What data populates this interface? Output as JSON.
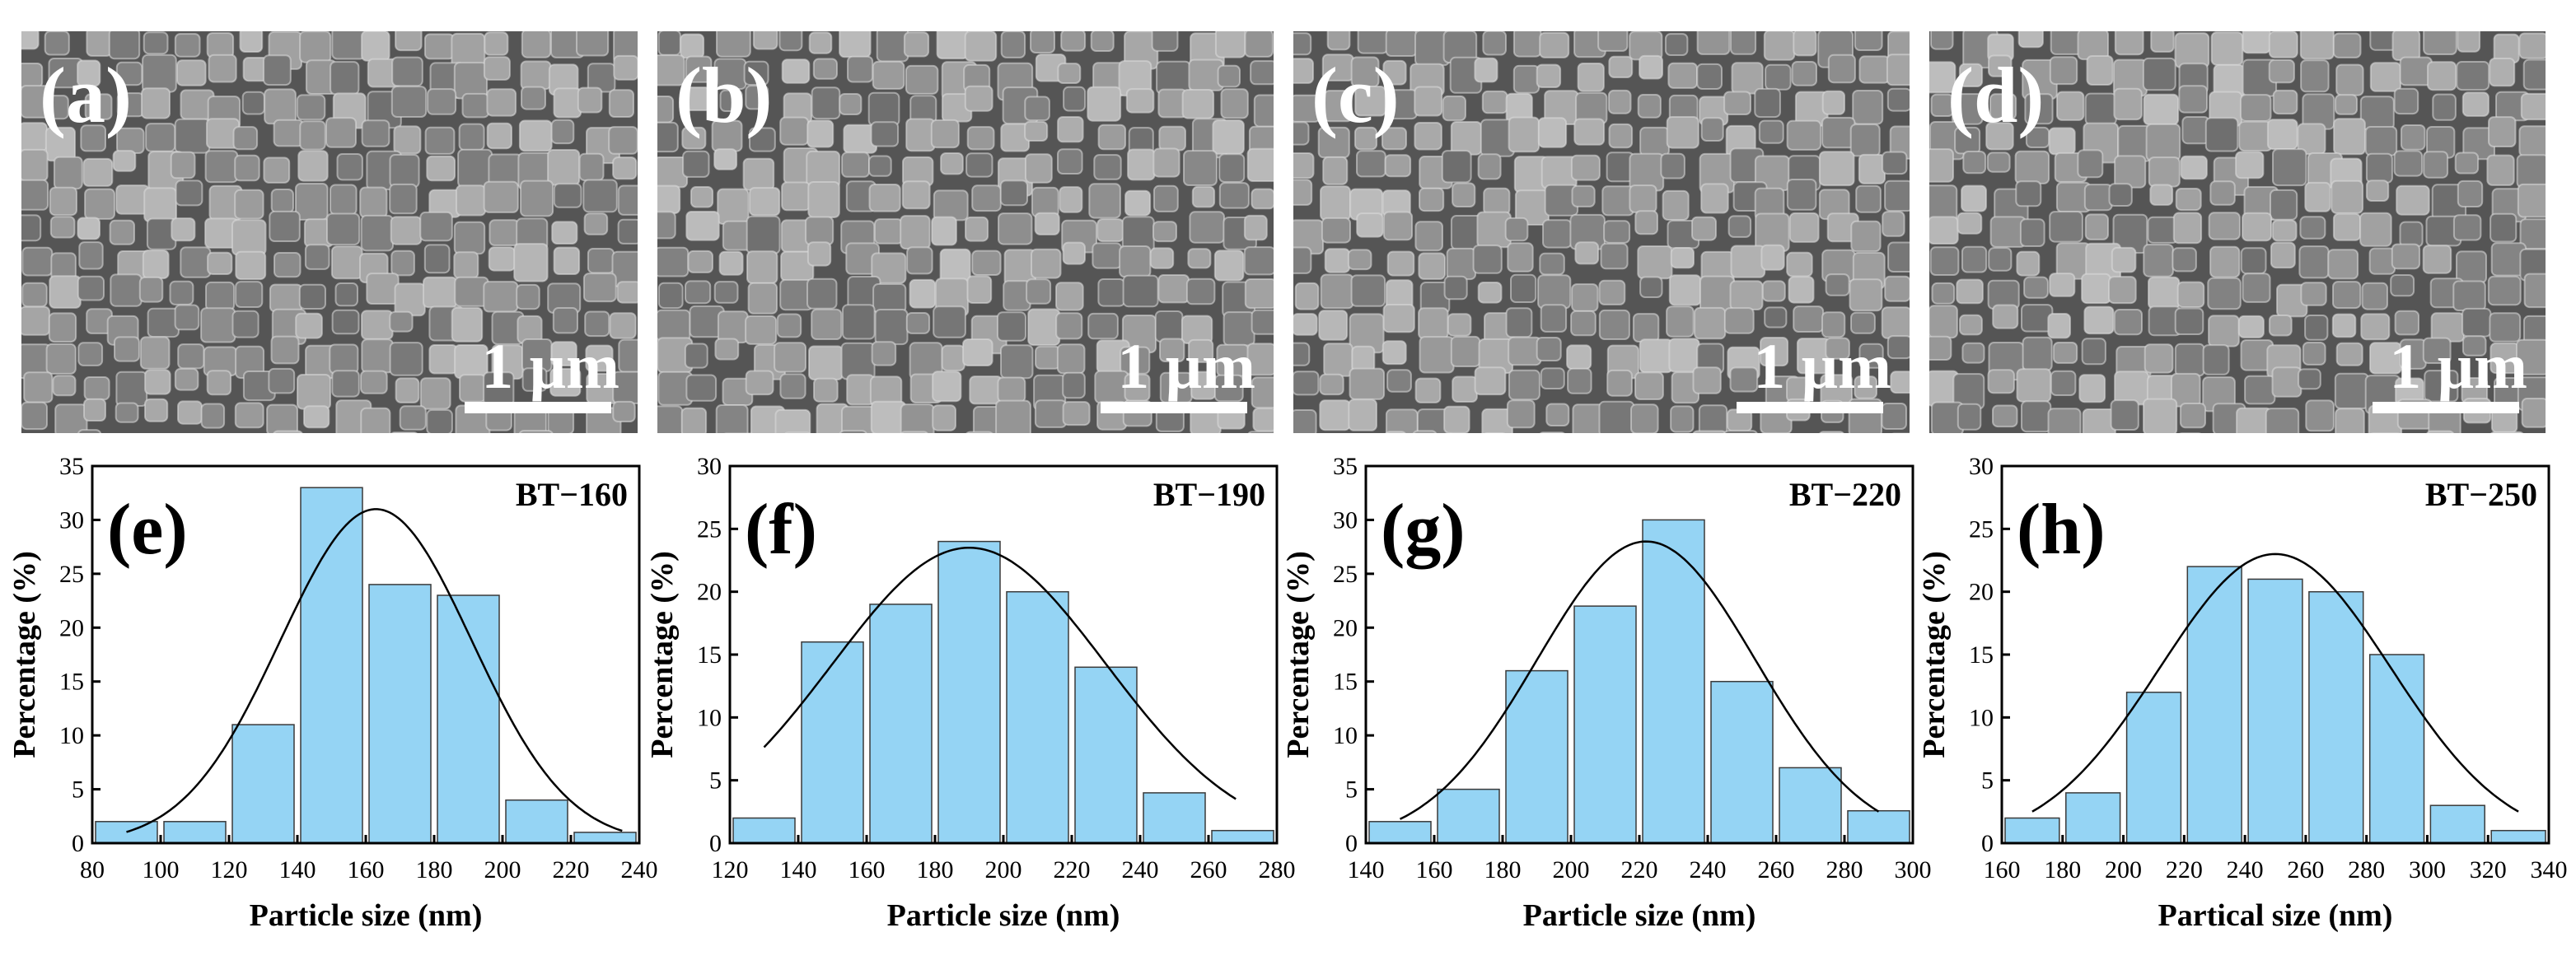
{
  "sem_panels": [
    {
      "label": "(a)",
      "scale": "1 μm"
    },
    {
      "label": "(b)",
      "scale": "1 μm"
    },
    {
      "label": "(c)",
      "scale": "1 μm"
    },
    {
      "label": "(d)",
      "scale": "1 μm"
    }
  ],
  "chart_data": [
    {
      "type": "bar",
      "panel_label": "(e)",
      "title": "BT−160",
      "xlabel": "Particle size (nm)",
      "ylabel": "Percentage (%)",
      "xlim": [
        80,
        240
      ],
      "ylim": [
        0,
        35
      ],
      "xticks": [
        80,
        100,
        120,
        140,
        160,
        180,
        200,
        220,
        240
      ],
      "yticks": [
        0,
        5,
        10,
        15,
        20,
        25,
        30,
        35
      ],
      "bin_width": 20,
      "bin_centers": [
        90,
        110,
        130,
        150,
        170,
        190,
        210,
        230
      ],
      "values": [
        2,
        2,
        11,
        33,
        24,
        23,
        4,
        1
      ],
      "fit": {
        "type": "gaussian",
        "mean": 163,
        "sigma": 28,
        "peak": 31,
        "x_range": [
          90,
          235
        ]
      }
    },
    {
      "type": "bar",
      "panel_label": "(f)",
      "title": "BT−190",
      "xlabel": "Particle size (nm)",
      "ylabel": "Percentage (%)",
      "xlim": [
        120,
        280
      ],
      "ylim": [
        0,
        30
      ],
      "xticks": [
        120,
        140,
        160,
        180,
        200,
        220,
        240,
        260,
        280
      ],
      "yticks": [
        0,
        5,
        10,
        15,
        20,
        25,
        30
      ],
      "bin_width": 20,
      "bin_centers": [
        130,
        150,
        170,
        190,
        210,
        230,
        250,
        270
      ],
      "values": [
        2,
        16,
        19,
        24,
        20,
        14,
        4,
        1
      ],
      "fit": {
        "type": "gaussian",
        "mean": 190,
        "sigma": 40,
        "peak": 23.5,
        "x_range": [
          130,
          268
        ]
      }
    },
    {
      "type": "bar",
      "panel_label": "(g)",
      "title": "BT−220",
      "xlabel": "Particle size (nm)",
      "ylabel": "Percentage (%)",
      "xlim": [
        140,
        300
      ],
      "ylim": [
        0,
        35
      ],
      "xticks": [
        140,
        160,
        180,
        200,
        220,
        240,
        260,
        280,
        300
      ],
      "yticks": [
        0,
        5,
        10,
        15,
        20,
        25,
        30,
        35
      ],
      "bin_width": 20,
      "bin_centers": [
        150,
        170,
        190,
        210,
        230,
        250,
        270,
        290
      ],
      "values": [
        2,
        5,
        16,
        22,
        30,
        15,
        7,
        3
      ],
      "fit": {
        "type": "gaussian",
        "mean": 222,
        "sigma": 32,
        "peak": 28,
        "x_range": [
          150,
          290
        ]
      }
    },
    {
      "type": "bar",
      "panel_label": "(h)",
      "title": "BT−250",
      "xlabel": "Partical size (nm)",
      "ylabel": "Percentage (%)",
      "xlim": [
        160,
        340
      ],
      "ylim": [
        0,
        30
      ],
      "xticks": [
        160,
        180,
        200,
        220,
        240,
        260,
        280,
        300,
        320,
        340
      ],
      "yticks": [
        0,
        5,
        10,
        15,
        20,
        25,
        30
      ],
      "bin_width": 20,
      "bin_centers": [
        170,
        190,
        210,
        230,
        250,
        270,
        290,
        310,
        330
      ],
      "values": [
        2,
        4,
        12,
        22,
        21,
        20,
        15,
        3,
        1
      ],
      "fit": {
        "type": "gaussian",
        "mean": 250,
        "sigma": 38,
        "peak": 23,
        "x_range": [
          170,
          330
        ]
      }
    }
  ],
  "colors": {
    "bar_fill": "#95d4f4",
    "bar_stroke": "#3a3a3a",
    "fit_line": "#000000",
    "axis": "#000000"
  }
}
